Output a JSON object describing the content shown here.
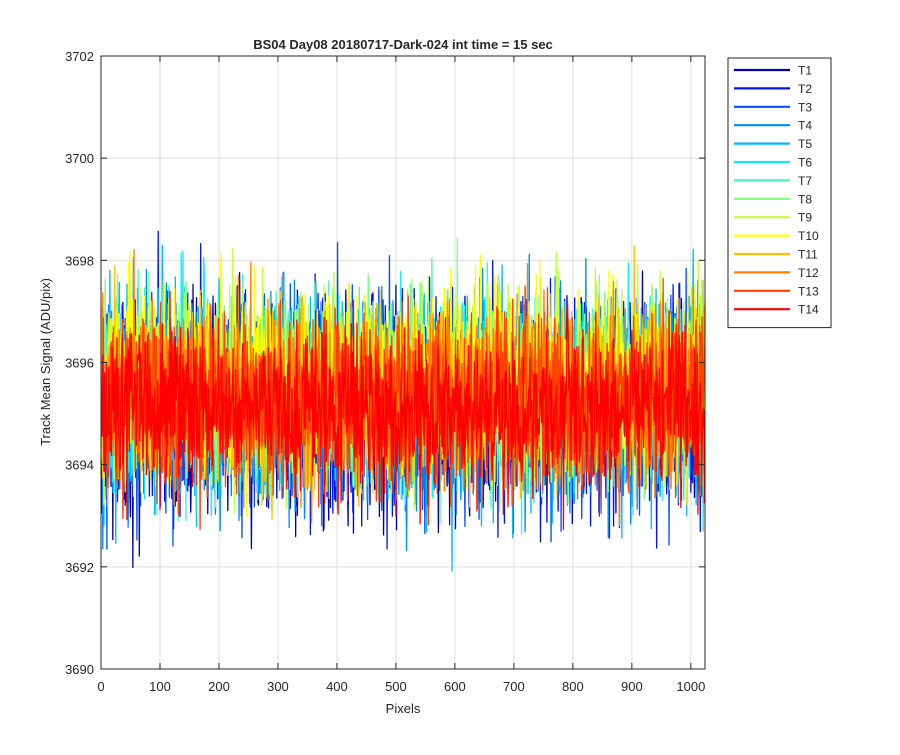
{
  "chart_data": {
    "type": "line",
    "title": "BS04 Day08 20180717-Dark-024 int time = 15 sec",
    "xlabel": "Pixels",
    "ylabel": "Track Mean Signal (ADU/pix)",
    "xlim": [
      0,
      1024
    ],
    "ylim": [
      3690,
      3702
    ],
    "xticks": [
      0,
      100,
      200,
      300,
      400,
      500,
      600,
      700,
      800,
      900,
      1000
    ],
    "yticks": [
      3690,
      3692,
      3694,
      3696,
      3698,
      3700,
      3702
    ],
    "grid": true,
    "legend_position": "outside-top-right",
    "n_points_per_series": 1024,
    "series": [
      {
        "name": "T1",
        "color": "#0000b0",
        "mean": 3695.2,
        "amplitude": 2.0
      },
      {
        "name": "T2",
        "color": "#0018e0",
        "mean": 3695.2,
        "amplitude": 1.9
      },
      {
        "name": "T3",
        "color": "#0050ff",
        "mean": 3695.2,
        "amplitude": 1.9
      },
      {
        "name": "T4",
        "color": "#0088ff",
        "mean": 3695.2,
        "amplitude": 1.8
      },
      {
        "name": "T5",
        "color": "#00b8ff",
        "mean": 3695.3,
        "amplitude": 1.8
      },
      {
        "name": "T6",
        "color": "#10f0f0",
        "mean": 3695.4,
        "amplitude": 1.7
      },
      {
        "name": "T7",
        "color": "#50f0c0",
        "mean": 3695.4,
        "amplitude": 1.7
      },
      {
        "name": "T8",
        "color": "#80ff80",
        "mean": 3695.5,
        "amplitude": 1.7
      },
      {
        "name": "T9",
        "color": "#c0ff40",
        "mean": 3695.6,
        "amplitude": 1.7
      },
      {
        "name": "T10",
        "color": "#ffff00",
        "mean": 3695.6,
        "amplitude": 1.7
      },
      {
        "name": "T11",
        "color": "#ffc000",
        "mean": 3695.4,
        "amplitude": 1.6
      },
      {
        "name": "T12",
        "color": "#ff8000",
        "mean": 3695.3,
        "amplitude": 1.6
      },
      {
        "name": "T13",
        "color": "#ff4000",
        "mean": 3695.2,
        "amplitude": 1.6
      },
      {
        "name": "T14",
        "color": "#ff0000",
        "mean": 3695.1,
        "amplitude": 1.5
      }
    ]
  }
}
